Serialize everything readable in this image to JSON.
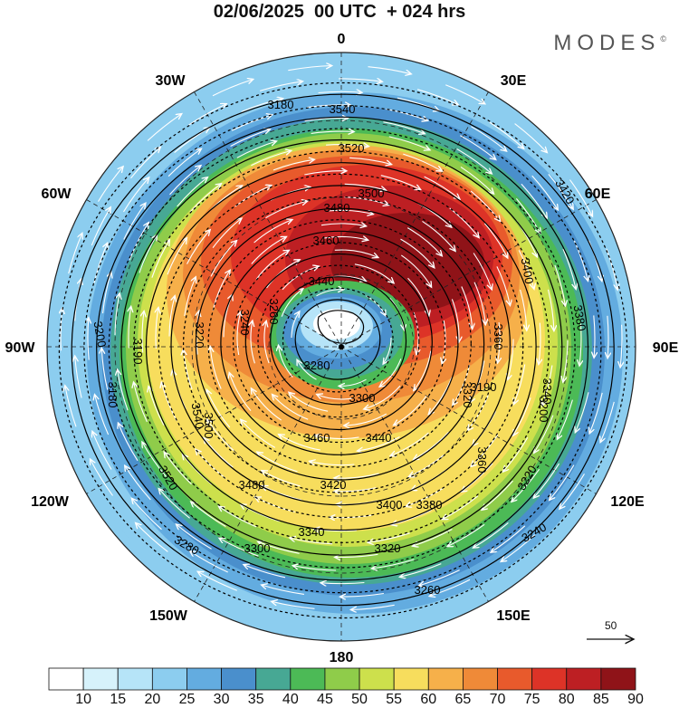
{
  "title": "02/06/2025  00 UTC  + 024 hrs",
  "brand": {
    "name": "MODES",
    "mark": "©"
  },
  "map": {
    "projection": "polar-stereographic-south",
    "meridian_labels": [
      "0",
      "30E",
      "60E",
      "90E",
      "120E",
      "150E",
      "180",
      "150W",
      "120W",
      "90W",
      "60W",
      "30W"
    ],
    "contour_labels": [
      "3540",
      "3520",
      "3500",
      "3480",
      "3460",
      "3440",
      "3420",
      "3400",
      "3380",
      "3360",
      "3340",
      "3320",
      "3300",
      "3280",
      "3260",
      "3240",
      "3220",
      "3200",
      "3190",
      "3180"
    ],
    "reference_vector": "50",
    "contour_color": "#000000",
    "streamline_color": "#ffffff"
  },
  "colorbar": {
    "labels": [
      "10",
      "15",
      "20",
      "25",
      "30",
      "35",
      "40",
      "45",
      "50",
      "55",
      "60",
      "65",
      "70",
      "75",
      "80",
      "85",
      "90"
    ],
    "colors": [
      "#ffffff",
      "#d6f2fb",
      "#b6e4f8",
      "#8ccdef",
      "#63ace0",
      "#4a8fcc",
      "#47a894",
      "#4cba56",
      "#8fcc4a",
      "#cde04c",
      "#f7dd5d",
      "#f6b04a",
      "#ef8a38",
      "#e85a2c",
      "#dd3327",
      "#bd1f23",
      "#8f1318"
    ]
  }
}
